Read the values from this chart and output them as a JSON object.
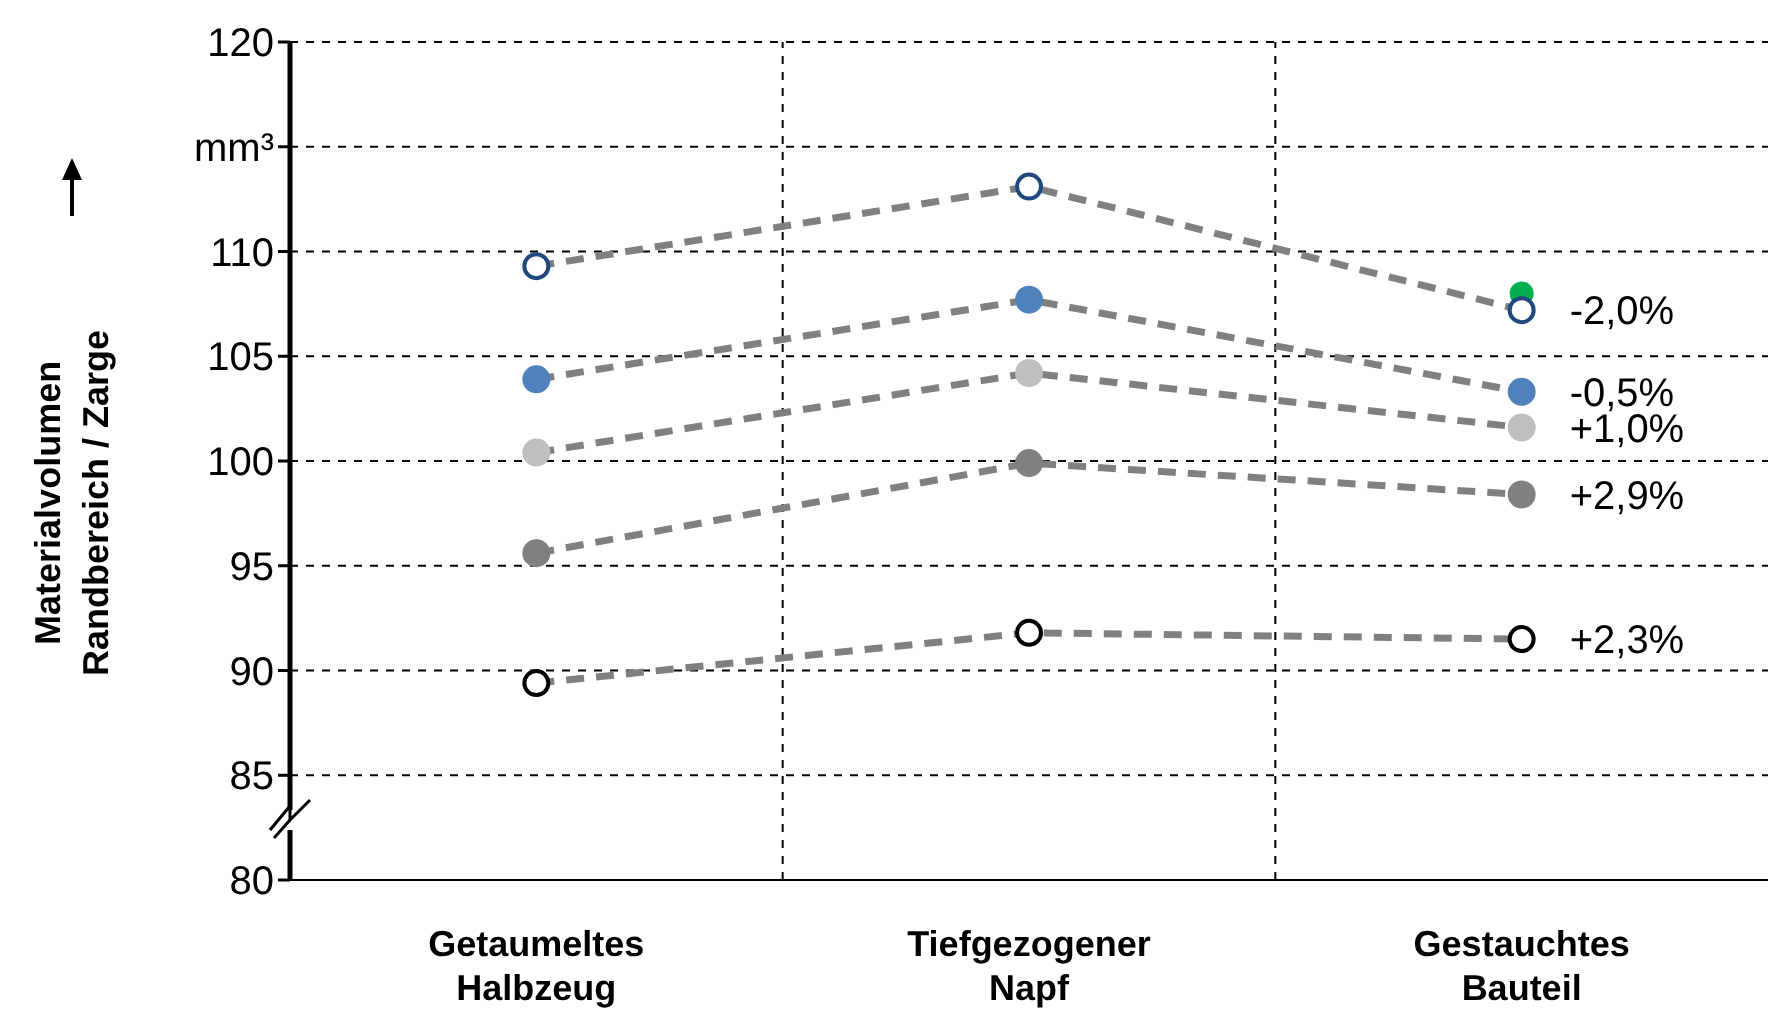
{
  "chart_data": {
    "type": "line",
    "ylabel": "Materialvolumen\nRandbereich / Zarge",
    "categories": [
      "Getaumeltes Halbzeug",
      "Tiefgezogener Napf",
      "Gestauchtes Bauteil"
    ],
    "color": "#808080",
    "line_style": "dashed",
    "marker": "circle",
    "series": [
      {
        "type": "scatter",
        "x": [
          "Gestauchtes Bauteil"
        ],
        "values": [
          108.0
        ],
        "color": "#00b050"
      },
      {
        "values": [
          109.3,
          113.1,
          107.2
        ],
        "color": "#1f497d",
        "colors": [
          "#ffffff",
          "#ffffff",
          "#ffffff"
        ]
      },
      {
        "values": [
          103.9,
          107.7,
          103.3
        ],
        "color": "#4f81bd"
      },
      {
        "values": [
          100.4,
          104.2,
          101.6
        ],
        "color": "#bfbfbf"
      },
      {
        "values": [
          95.6,
          99.9,
          98.4
        ],
        "color": "#808080"
      },
      {
        "values": [
          89.4,
          91.8,
          91.5
        ],
        "color": "#000000",
        "colors": [
          "#ffffff",
          "#ffffff",
          "#ffffff"
        ]
      }
    ],
    "annotations": [
      {
        "text": "-2,0%",
        "x": "Gestauchtes Bauteil",
        "y": 107.2
      },
      {
        "text": "-0,5%",
        "x": "Gestauchtes Bauteil",
        "y": 103.3
      },
      {
        "text": "+1,0%",
        "x": "Gestauchtes Bauteil",
        "y": 101.6
      },
      {
        "text": "+2,9%",
        "x": "Gestauchtes Bauteil",
        "y": 98.4
      },
      {
        "text": "+2,3%",
        "x": "Gestauchtes Bauteil",
        "y": 91.5
      }
    ],
    "ylim": [
      80,
      120
    ],
    "yticks": [
      80,
      85,
      90,
      95,
      100,
      105,
      110,
      {
        "value": 115,
        "label": "mm³"
      },
      120
    ],
    "grid": true,
    "legend": false
  }
}
